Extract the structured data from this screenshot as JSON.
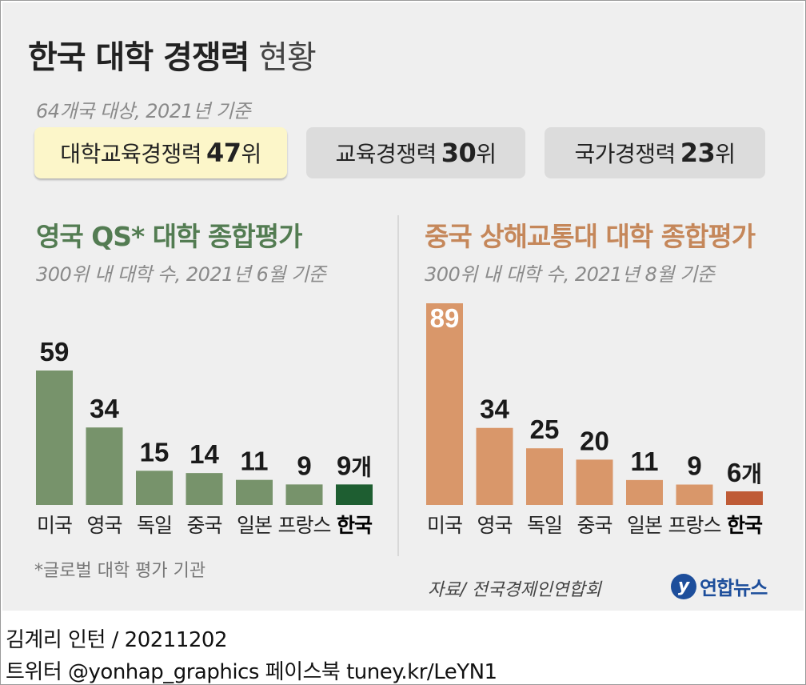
{
  "title": {
    "bold": "한국 대학 경쟁력",
    "light": "현황"
  },
  "subtitle": "64개국 대상, 2021년 기준",
  "badges": [
    {
      "label": "대학교육경쟁력",
      "value": "47",
      "unit": "위"
    },
    {
      "label": "교육경쟁력",
      "value": "30",
      "unit": "위"
    },
    {
      "label": "국가경쟁력",
      "value": "23",
      "unit": "위"
    }
  ],
  "footnote": "*글로벌 대학 평가 기관",
  "source": "자료/ 전국경제인연합회",
  "logo": {
    "mark": "y",
    "text": "연합뉴스"
  },
  "credits": {
    "line1": "김계리 인턴 / 20211202",
    "line2": "트위터 @yonhap_graphics  페이스북 tuney.kr/LeYN1"
  },
  "colors": {
    "green": "#77936b",
    "green_hi": "#1e5e31",
    "orange": "#d9976a",
    "orange_hi": "#bf5b36",
    "green_title": "#537c52",
    "orange_title": "#c5875a"
  },
  "chart_data": [
    {
      "type": "bar",
      "title": "영국 QS* 대학 종합평가",
      "subtitle": "300위 내 대학 수, 2021년 6월 기준",
      "categories": [
        "미국",
        "영국",
        "독일",
        "중국",
        "일본",
        "프랑스",
        "한국"
      ],
      "values": [
        59,
        34,
        15,
        14,
        11,
        9,
        9
      ],
      "labels": [
        "59",
        "34",
        "15",
        "14",
        "11",
        "9",
        "9"
      ],
      "unit": "개",
      "highlight": "한국",
      "ylim": [
        0,
        59
      ]
    },
    {
      "type": "bar",
      "title": "중국 상해교통대 대학 종합평가",
      "subtitle": "300위 내 대학 수, 2021년 8월 기준",
      "categories": [
        "미국",
        "영국",
        "독일",
        "중국",
        "일본",
        "프랑스",
        "한국"
      ],
      "values": [
        89,
        34,
        25,
        20,
        11,
        9,
        6
      ],
      "labels": [
        "89",
        "34",
        "25",
        "20",
        "11",
        "9",
        "6"
      ],
      "unit": "개",
      "highlight": "한국",
      "ylim": [
        0,
        89
      ]
    }
  ]
}
